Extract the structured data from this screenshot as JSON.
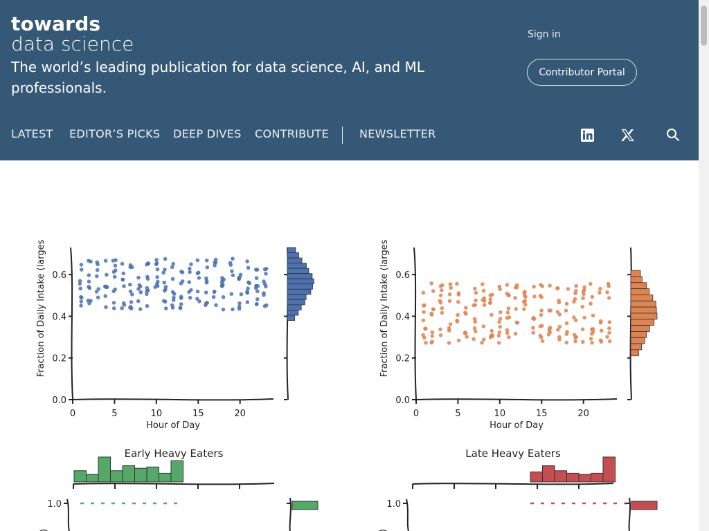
{
  "header": {
    "brand_line1": "towards",
    "brand_line2": "data science",
    "tagline": "The world’s leading publication for data science, AI, and ML professionals.",
    "sign_in": "Sign in",
    "contributor_portal": "Contributor Portal",
    "nav": [
      "LATEST",
      "EDITOR’S PICKS",
      "DEEP DIVES",
      "CONTRIBUTE",
      "NEWSLETTER"
    ],
    "icons": [
      "linkedin-icon",
      "x-icon",
      "search-icon"
    ]
  },
  "colors": {
    "header_bg": "#355876",
    "blue_series": "#4c72b0",
    "orange_series": "#dd8452",
    "green_series": "#55a868",
    "red_series": "#c44e52"
  },
  "chart_data": [
    {
      "type": "scatter",
      "xlabel": "Hour of Day",
      "ylabel": "Fraction of Daily Intake (larges",
      "x_ticks": [
        "0",
        "5",
        "10",
        "15",
        "20"
      ],
      "y_ticks": [
        "0.0",
        "0.2",
        "0.4",
        "0.6"
      ],
      "xlim": [
        0,
        24
      ],
      "ylim": [
        0,
        0.73
      ],
      "color": "#4c72b0",
      "x_hours": [
        1,
        2,
        3,
        4,
        5,
        6,
        7,
        8,
        9,
        10,
        11,
        12,
        13,
        14,
        15,
        16,
        17,
        18,
        19,
        20,
        21,
        22,
        23
      ],
      "y_range": [
        0.38,
        0.73
      ],
      "marginal_hist": "right"
    },
    {
      "type": "scatter",
      "xlabel": "Hour of Day",
      "ylabel": "Fraction of Daily Intake (larges",
      "x_ticks": [
        "0",
        "5",
        "10",
        "15",
        "20"
      ],
      "y_ticks": [
        "0.0",
        "0.2",
        "0.4",
        "0.6"
      ],
      "xlim": [
        0,
        24
      ],
      "ylim": [
        0,
        0.73
      ],
      "color": "#dd8452",
      "x_hours": [
        1,
        2,
        3,
        4,
        5,
        6,
        7,
        8,
        9,
        10,
        11,
        12,
        13,
        14,
        15,
        16,
        17,
        18,
        19,
        20,
        21,
        22,
        23
      ],
      "y_range": [
        0.21,
        0.62
      ],
      "marginal_hist": "right"
    },
    {
      "type": "bar",
      "title": "Early Heavy Eaters",
      "color": "#55a868",
      "y_ticks": [
        "1.0"
      ],
      "bar_values": [
        0.45,
        0.3,
        1.0,
        0.45,
        0.65,
        0.55,
        0.6,
        0.35,
        0.85
      ]
    },
    {
      "type": "bar",
      "title": "Late Heavy Eaters",
      "color": "#c44e52",
      "y_ticks": [
        "1.0"
      ],
      "bar_values": [
        0.4,
        0.65,
        0.45,
        0.35,
        0.3,
        0.35,
        1.0
      ]
    }
  ]
}
